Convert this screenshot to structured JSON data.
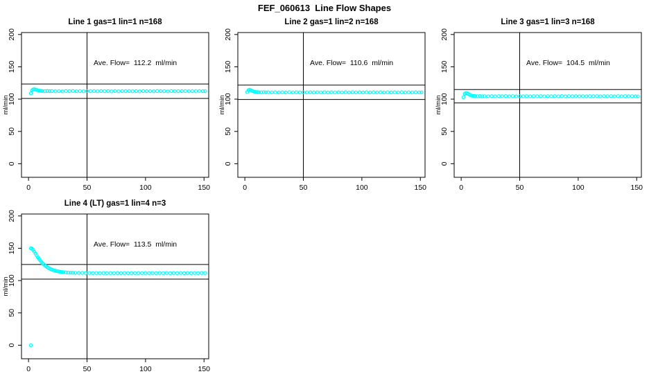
{
  "title": "FEF_060613  Line Flow Shapes",
  "colors": {
    "marker": "#00ffff",
    "axis": "#000000",
    "background": "#ffffff"
  },
  "chart_data": {
    "type": "scatter",
    "title": "FEF_060613  Line Flow Shapes",
    "ylabel": "ml/min",
    "xlabel": "",
    "x_ticks": [
      0,
      50,
      100,
      150
    ],
    "y_ticks": [
      0,
      50,
      100,
      150,
      200
    ],
    "xlim": [
      -6,
      154
    ],
    "ylim": [
      -21,
      203
    ],
    "legend": "none",
    "grid": false,
    "panels": [
      {
        "row": 0,
        "col": 0,
        "title": "Line 1 gas=1 lin=1 n=168",
        "annotation": "Ave. Flow=  112.2  ml/min",
        "ave_flow": 112.2,
        "n": 168,
        "vline_x": 50,
        "hlines": [
          123.4,
          101.0
        ],
        "points": [
          [
            2,
            109
          ],
          [
            3,
            113.5
          ],
          [
            4,
            115
          ],
          [
            5,
            115.3
          ],
          [
            6,
            114.8
          ],
          [
            7,
            114.2
          ],
          [
            8,
            113.6
          ],
          [
            9,
            113.2
          ],
          [
            10,
            112.9
          ],
          [
            11,
            112.7
          ],
          [
            12,
            112.5
          ],
          [
            14,
            112.4
          ],
          [
            16,
            112.6
          ],
          [
            18,
            112.3
          ],
          [
            20,
            112.5
          ],
          [
            23,
            112.2
          ],
          [
            26,
            112.4
          ],
          [
            29,
            112.1
          ],
          [
            32,
            112.5
          ],
          [
            35,
            112.3
          ],
          [
            38,
            112.6
          ],
          [
            41,
            112.2
          ],
          [
            44,
            112.4
          ],
          [
            47,
            112.1
          ],
          [
            50,
            112.5
          ],
          [
            53,
            112.3
          ],
          [
            56,
            112.4
          ],
          [
            59,
            112.2
          ],
          [
            62,
            112.5
          ],
          [
            65,
            112.3
          ],
          [
            68,
            112.4
          ],
          [
            71,
            112.1
          ],
          [
            74,
            112.5
          ],
          [
            77,
            112.2
          ],
          [
            80,
            112.4
          ],
          [
            83,
            112.3
          ],
          [
            86,
            112.5
          ],
          [
            89,
            112.2
          ],
          [
            92,
            112.4
          ],
          [
            95,
            112.1
          ],
          [
            98,
            112.5
          ],
          [
            101,
            112.3
          ],
          [
            104,
            112.4
          ],
          [
            107,
            112.2
          ],
          [
            110,
            112.5
          ],
          [
            113,
            112.3
          ],
          [
            116,
            112.4
          ],
          [
            119,
            112.1
          ],
          [
            122,
            112.5
          ],
          [
            125,
            112.2
          ],
          [
            128,
            112.4
          ],
          [
            131,
            112.3
          ],
          [
            134,
            112.5
          ],
          [
            137,
            112.2
          ],
          [
            140,
            112.4
          ],
          [
            143,
            112.3
          ],
          [
            146,
            112.5
          ],
          [
            149,
            112.3
          ],
          [
            151,
            112.4
          ]
        ]
      },
      {
        "row": 0,
        "col": 1,
        "title": "Line 2 gas=1 lin=2 n=168",
        "annotation": "Ave. Flow=  110.6  ml/min",
        "ave_flow": 110.6,
        "n": 168,
        "vline_x": 50,
        "hlines": [
          121.7,
          99.5
        ],
        "points": [
          [
            2,
            111
          ],
          [
            3,
            113.8
          ],
          [
            4,
            114.3
          ],
          [
            5,
            113.9
          ],
          [
            6,
            113
          ],
          [
            7,
            112.2
          ],
          [
            8,
            111.6
          ],
          [
            9,
            111.2
          ],
          [
            10,
            110.9
          ],
          [
            11,
            110.7
          ],
          [
            12,
            110.6
          ],
          [
            14,
            110.5
          ],
          [
            16,
            110.7
          ],
          [
            18,
            110.4
          ],
          [
            20,
            110.6
          ],
          [
            23,
            110.4
          ],
          [
            26,
            110.6
          ],
          [
            29,
            110.3
          ],
          [
            32,
            110.6
          ],
          [
            35,
            110.4
          ],
          [
            38,
            110.7
          ],
          [
            41,
            110.4
          ],
          [
            44,
            110.6
          ],
          [
            47,
            110.3
          ],
          [
            50,
            110.6
          ],
          [
            53,
            110.4
          ],
          [
            56,
            110.6
          ],
          [
            59,
            110.3
          ],
          [
            62,
            110.6
          ],
          [
            65,
            110.4
          ],
          [
            68,
            110.6
          ],
          [
            71,
            110.3
          ],
          [
            74,
            110.6
          ],
          [
            77,
            110.4
          ],
          [
            80,
            110.6
          ],
          [
            83,
            110.4
          ],
          [
            86,
            110.7
          ],
          [
            89,
            110.3
          ],
          [
            92,
            110.6
          ],
          [
            95,
            110.4
          ],
          [
            98,
            110.6
          ],
          [
            101,
            110.4
          ],
          [
            104,
            110.6
          ],
          [
            107,
            110.3
          ],
          [
            110,
            110.6
          ],
          [
            113,
            110.4
          ],
          [
            116,
            110.6
          ],
          [
            119,
            110.3
          ],
          [
            122,
            110.6
          ],
          [
            125,
            110.4
          ],
          [
            128,
            110.6
          ],
          [
            131,
            110.4
          ],
          [
            134,
            110.7
          ],
          [
            137,
            110.3
          ],
          [
            140,
            110.6
          ],
          [
            143,
            110.4
          ],
          [
            146,
            110.6
          ],
          [
            149,
            110.4
          ],
          [
            151,
            110.5
          ]
        ]
      },
      {
        "row": 0,
        "col": 2,
        "title": "Line 3 gas=1 lin=3 n=168",
        "annotation": "Ave. Flow=  104.5  ml/min",
        "ave_flow": 104.5,
        "n": 168,
        "vline_x": 50,
        "hlines": [
          114.9,
          94.1
        ],
        "points": [
          [
            2,
            103
          ],
          [
            3,
            108.2
          ],
          [
            4,
            109.3
          ],
          [
            5,
            109
          ],
          [
            6,
            108.2
          ],
          [
            7,
            107
          ],
          [
            8,
            106
          ],
          [
            9,
            105.4
          ],
          [
            10,
            105
          ],
          [
            11,
            104.8
          ],
          [
            12,
            104.7
          ],
          [
            14,
            104.5
          ],
          [
            16,
            104.7
          ],
          [
            18,
            104.4
          ],
          [
            20,
            104.6
          ],
          [
            23,
            104.3
          ],
          [
            26,
            104.6
          ],
          [
            29,
            104.3
          ],
          [
            32,
            104.6
          ],
          [
            35,
            104.4
          ],
          [
            38,
            104.7
          ],
          [
            41,
            104.3
          ],
          [
            44,
            104.6
          ],
          [
            47,
            104.3
          ],
          [
            50,
            104.6
          ],
          [
            53,
            104.4
          ],
          [
            56,
            104.6
          ],
          [
            59,
            104.3
          ],
          [
            62,
            104.6
          ],
          [
            65,
            104.4
          ],
          [
            68,
            104.6
          ],
          [
            71,
            104.3
          ],
          [
            74,
            104.6
          ],
          [
            77,
            104.4
          ],
          [
            80,
            104.6
          ],
          [
            83,
            104.3
          ],
          [
            86,
            104.7
          ],
          [
            89,
            104.3
          ],
          [
            92,
            104.6
          ],
          [
            95,
            104.4
          ],
          [
            98,
            104.6
          ],
          [
            101,
            104.3
          ],
          [
            104,
            104.6
          ],
          [
            107,
            104.3
          ],
          [
            110,
            104.6
          ],
          [
            113,
            104.4
          ],
          [
            116,
            104.6
          ],
          [
            119,
            104.3
          ],
          [
            122,
            104.6
          ],
          [
            125,
            104.4
          ],
          [
            128,
            104.6
          ],
          [
            131,
            104.3
          ],
          [
            134,
            104.6
          ],
          [
            137,
            104.3
          ],
          [
            140,
            104.6
          ],
          [
            143,
            104.4
          ],
          [
            146,
            104.5
          ],
          [
            149,
            104.3
          ],
          [
            151,
            104.2
          ]
        ]
      },
      {
        "row": 1,
        "col": 0,
        "title": "Line 4 (LT) gas=1 lin=4 n=3",
        "annotation": "Ave. Flow=  113.5  ml/min",
        "ave_flow": 113.5,
        "n": 3,
        "vline_x": 50,
        "hlines": [
          124.9,
          102.2
        ],
        "points": [
          [
            2,
            0
          ],
          [
            2,
            150
          ],
          [
            3,
            149.3
          ],
          [
            4,
            147.2
          ],
          [
            5,
            144.6
          ],
          [
            6,
            141.8
          ],
          [
            7,
            138.9
          ],
          [
            8,
            136.1
          ],
          [
            9,
            133.5
          ],
          [
            10,
            131.1
          ],
          [
            11,
            128.9
          ],
          [
            12,
            126.9
          ],
          [
            13,
            125.1
          ],
          [
            14,
            123.5
          ],
          [
            15,
            122.1
          ],
          [
            16,
            120.8
          ],
          [
            17,
            119.7
          ],
          [
            18,
            118.7
          ],
          [
            19,
            117.8
          ],
          [
            20,
            117
          ],
          [
            21,
            116.3
          ],
          [
            22,
            115.7
          ],
          [
            23,
            115.2
          ],
          [
            24,
            114.7
          ],
          [
            25,
            114.3
          ],
          [
            26,
            113.9
          ],
          [
            27,
            113.6
          ],
          [
            28,
            113.3
          ],
          [
            29,
            113.1
          ],
          [
            30,
            112.9
          ],
          [
            32,
            112.6
          ],
          [
            34,
            112.4
          ],
          [
            36,
            112.2
          ],
          [
            38,
            112.1
          ],
          [
            40,
            112
          ],
          [
            43,
            111.9
          ],
          [
            46,
            111.8
          ],
          [
            49,
            111.7
          ],
          [
            52,
            111.7
          ],
          [
            55,
            111.6
          ],
          [
            58,
            111.7
          ],
          [
            61,
            111.6
          ],
          [
            64,
            111.7
          ],
          [
            67,
            111.6
          ],
          [
            70,
            111.7
          ],
          [
            73,
            111.6
          ],
          [
            76,
            111.7
          ],
          [
            79,
            111.6
          ],
          [
            82,
            111.7
          ],
          [
            85,
            111.6
          ],
          [
            88,
            111.7
          ],
          [
            91,
            111.6
          ],
          [
            94,
            111.7
          ],
          [
            97,
            111.6
          ],
          [
            100,
            111.7
          ],
          [
            103,
            111.6
          ],
          [
            106,
            111.7
          ],
          [
            109,
            111.6
          ],
          [
            112,
            111.7
          ],
          [
            115,
            111.6
          ],
          [
            118,
            111.7
          ],
          [
            121,
            111.6
          ],
          [
            124,
            111.7
          ],
          [
            127,
            111.6
          ],
          [
            130,
            111.7
          ],
          [
            133,
            111.6
          ],
          [
            136,
            111.7
          ],
          [
            139,
            111.6
          ],
          [
            142,
            111.7
          ],
          [
            145,
            111.6
          ],
          [
            148,
            111.7
          ],
          [
            151,
            111.7
          ]
        ]
      }
    ]
  }
}
